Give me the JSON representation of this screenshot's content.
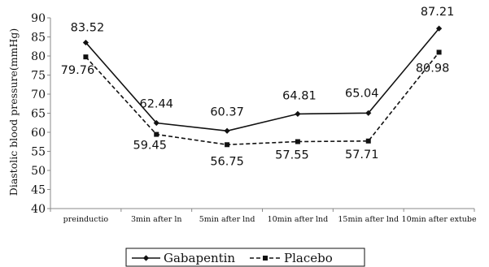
{
  "chart_data": {
    "type": "line",
    "categories": [
      "preinductio",
      "3min after ln",
      "5min after lnd",
      "10min after lnd",
      "15min after lnd",
      "10min after extube"
    ],
    "series": [
      {
        "name": "Gabapentin",
        "values": [
          83.52,
          62.44,
          60.37,
          64.81,
          65.04,
          87.21
        ],
        "labels": [
          "83.52",
          "62.44",
          "60.37",
          "64.81",
          "65.04",
          "87.21"
        ],
        "style": "solid",
        "marker": "diamond",
        "color": "#111111"
      },
      {
        "name": "Placebo",
        "values": [
          79.76,
          59.45,
          56.75,
          57.55,
          57.71,
          80.98
        ],
        "labels": [
          "79.76",
          "59.45",
          "56.75",
          "57.55",
          "57.71",
          "80.98"
        ],
        "style": "dashed",
        "marker": "square",
        "color": "#111111"
      }
    ],
    "ylabel": "Diastolic blood pressure(mmHg)",
    "xlabel": "",
    "ylim": [
      40,
      90
    ],
    "yticks": [
      40,
      45,
      50,
      55,
      60,
      65,
      70,
      75,
      80,
      85,
      90
    ],
    "grid": false,
    "legend": "bottom"
  }
}
